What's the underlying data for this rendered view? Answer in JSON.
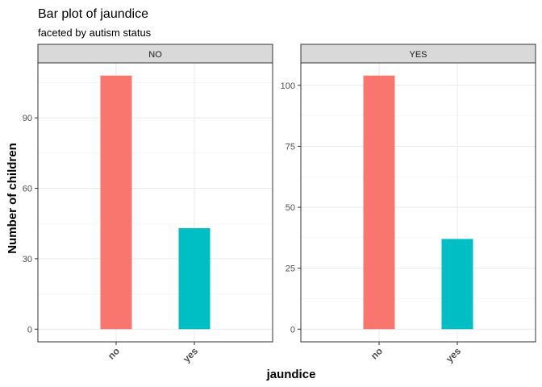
{
  "chart_data": {
    "type": "bar",
    "title": "Bar plot of jaundice",
    "subtitle": "faceted by autism status",
    "xlabel": "jaundice",
    "ylabel": "Number of children",
    "categories": [
      "no",
      "yes"
    ],
    "colors": {
      "no": "#F8766D",
      "yes": "#00BFC4"
    },
    "grid": true,
    "legend": "none",
    "facets": [
      {
        "label": "NO",
        "values": [
          108,
          43
        ],
        "ylim": [
          -5.4,
          113.4
        ],
        "yticks": [
          0,
          30,
          60,
          90
        ]
      },
      {
        "label": "YES",
        "values": [
          104,
          37
        ],
        "ylim": [
          -5.2,
          109.2
        ],
        "yticks": [
          0,
          25,
          50,
          75,
          100
        ]
      }
    ]
  }
}
